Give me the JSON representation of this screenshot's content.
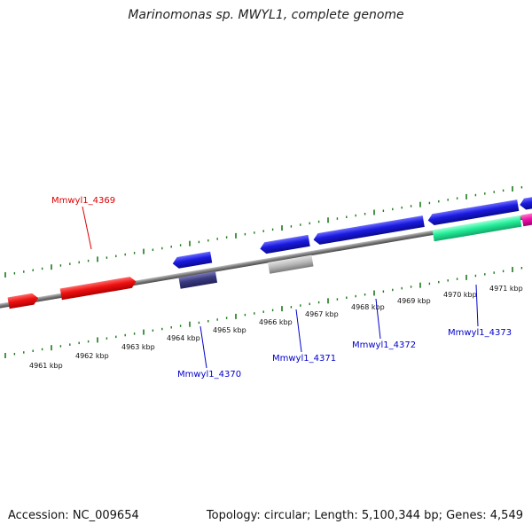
{
  "title": "Marinomonas sp. MWYL1, complete genome",
  "footer": {
    "accession": "Accession: NC_009654",
    "summary": "Topology: circular; Length: 5,100,344 bp; Genes: 4,549"
  },
  "colors": {
    "tick": "#1a7a1a",
    "backbone": "#8a8a8a",
    "gene_red": "#ee1111",
    "gene_blue": "#1a1ae0",
    "gene_navy": "#3a3a80",
    "gene_gray": "#b8b8b8",
    "gene_green": "#22ee99",
    "gene_magenta": "#ee11aa",
    "label_red": "#dd0000",
    "label_blue": "#0000cc"
  },
  "scale_labels": [
    "4961 kbp",
    "4962 kbp",
    "4963 kbp",
    "4964 kbp",
    "4965 kbp",
    "4966 kbp",
    "4967 kbp",
    "4968 kbp",
    "4969 kbp",
    "4970 kbp",
    "4971 kbp"
  ],
  "genes": [
    {
      "id": "g-red-small",
      "color": "gene_red",
      "strand": "+"
    },
    {
      "id": "g-red-large",
      "color": "gene_red",
      "strand": "+"
    },
    {
      "id": "g-blue-1",
      "color": "gene_blue",
      "strand": "-"
    },
    {
      "id": "g-navy-1",
      "color": "gene_navy",
      "strand": "none"
    },
    {
      "id": "g-blue-2",
      "color": "gene_blue",
      "strand": "-"
    },
    {
      "id": "g-gray-1",
      "color": "gene_gray",
      "strand": "none"
    },
    {
      "id": "g-blue-3",
      "color": "gene_blue",
      "strand": "-"
    },
    {
      "id": "g-blue-4",
      "color": "gene_blue",
      "strand": "-"
    },
    {
      "id": "g-green-1",
      "color": "gene_green",
      "strand": "none"
    },
    {
      "id": "g-blue-5",
      "color": "gene_blue",
      "strand": "-"
    },
    {
      "id": "g-magenta-1",
      "color": "gene_magenta",
      "strand": "none"
    }
  ],
  "gene_labels": [
    {
      "text": "Mmwyl1_4369",
      "color": "label_red"
    },
    {
      "text": "Mmwyl1_4370",
      "color": "label_blue"
    },
    {
      "text": "Mmwyl1_4371",
      "color": "label_blue"
    },
    {
      "text": "Mmwyl1_4372",
      "color": "label_blue"
    },
    {
      "text": "Mmwyl1_4373",
      "color": "label_blue"
    }
  ]
}
